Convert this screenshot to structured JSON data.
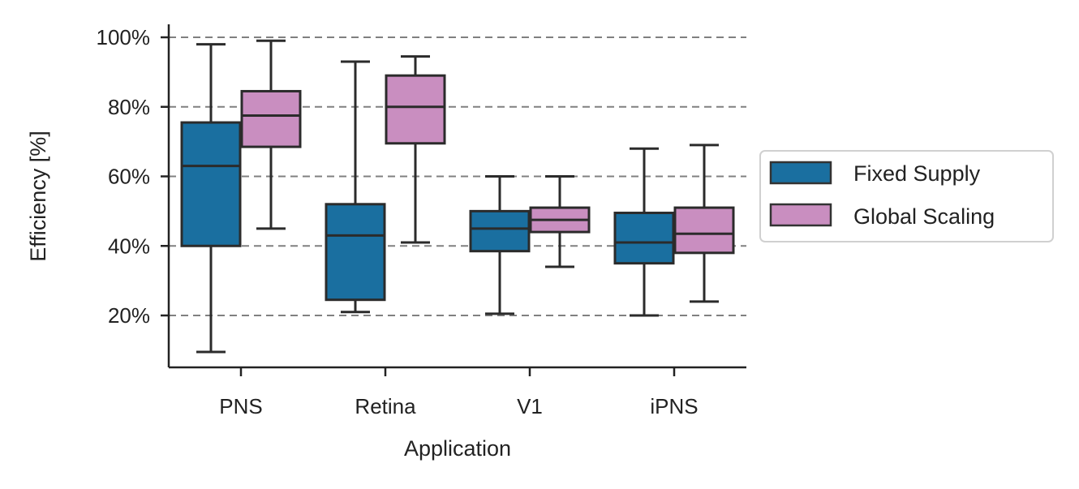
{
  "chart_data": {
    "type": "boxplot",
    "title": "",
    "xlabel": "Application",
    "ylabel": "Efficiency [%]",
    "categories": [
      "PNS",
      "Retina",
      "V1",
      "iPNS"
    ],
    "ylim": [
      5,
      103
    ],
    "yticks": [
      20,
      40,
      60,
      80,
      100
    ],
    "ytick_labels": [
      "20%",
      "40%",
      "60%",
      "80%",
      "100%"
    ],
    "grid": "horizontal dashed",
    "legend_position": "right",
    "series": [
      {
        "name": "Fixed Supply",
        "color": "#1a6fa0",
        "boxes": [
          {
            "min": 9.5,
            "q1": 40,
            "median": 63,
            "q3": 75.5,
            "max": 98
          },
          {
            "min": 21,
            "q1": 24.5,
            "median": 43,
            "q3": 52,
            "max": 93
          },
          {
            "min": 20.5,
            "q1": 38.5,
            "median": 45,
            "q3": 50,
            "max": 60
          },
          {
            "min": 20,
            "q1": 35,
            "median": 41,
            "q3": 49.5,
            "max": 68
          }
        ]
      },
      {
        "name": "Global Scaling",
        "color": "#c98ec0",
        "boxes": [
          {
            "min": 45,
            "q1": 68.5,
            "median": 77.5,
            "q3": 84.5,
            "max": 99
          },
          {
            "min": 41,
            "q1": 69.5,
            "median": 80,
            "q3": 89,
            "max": 94.5
          },
          {
            "min": 34,
            "q1": 44,
            "median": 47.5,
            "q3": 51,
            "max": 60
          },
          {
            "min": 24,
            "q1": 38,
            "median": 43.5,
            "q3": 51,
            "max": 69
          }
        ]
      }
    ]
  }
}
